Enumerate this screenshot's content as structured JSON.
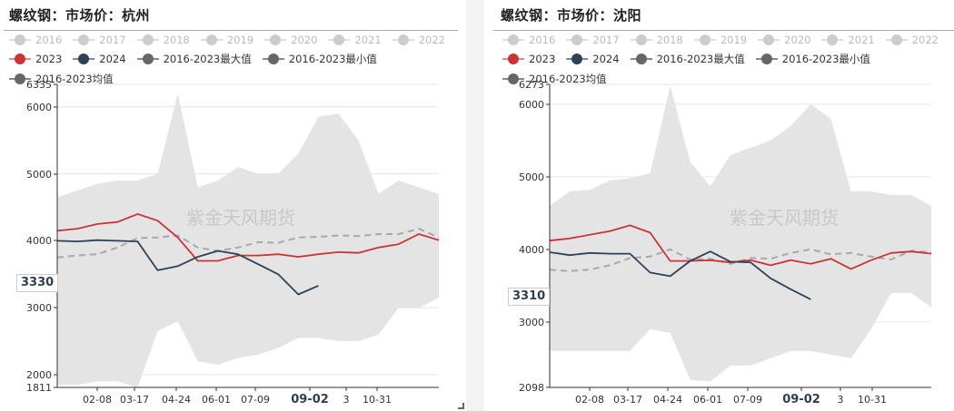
{
  "colors": {
    "y2023": "#c93434",
    "y2024": "#2e4257",
    "max_min": "#666666",
    "mean": "#999999",
    "band": "#e4e4e4",
    "inactive": "#cccccc"
  },
  "legend": {
    "inactive_years": [
      "2016",
      "2017",
      "2018",
      "2019",
      "2020",
      "2021",
      "2022"
    ],
    "active": [
      {
        "label": "2023"
      },
      {
        "label": "2024"
      },
      {
        "label": "2016-2023最大值"
      },
      {
        "label": "2016-2023最小值"
      }
    ],
    "mean": {
      "label": "2016-2023均值"
    }
  },
  "watermark": "紫金天风期货",
  "charts": [
    {
      "title": "螺纹钢：市场价：杭州",
      "y_axis": {
        "ticks": [
          "6335",
          "6000",
          "5000",
          "4000",
          "3000",
          "2000",
          "1811"
        ]
      },
      "x_axis": {
        "ticks": [
          "02-08",
          "03-17",
          "04-24",
          "06-01",
          "07-09",
          "09-02",
          "3",
          "10-31"
        ],
        "highlight": "09-02"
      },
      "current_badge": "3330"
    },
    {
      "title": "螺纹钢：市场价：沈阳",
      "y_axis": {
        "ticks": [
          "6273",
          "6000",
          "5000",
          "4000",
          "3000",
          "2098"
        ]
      },
      "x_axis": {
        "ticks": [
          "02-08",
          "03-17",
          "04-24",
          "06-01",
          "07-09",
          "09-02",
          "3",
          "10-31"
        ],
        "highlight": "09-02"
      },
      "current_badge": "3310"
    }
  ],
  "chart_data": [
    {
      "type": "line",
      "title": "螺纹钢：市场价：杭州",
      "xlabel": "",
      "ylabel": "",
      "ylim": [
        1811,
        6335
      ],
      "x_ticks": [
        "02-08",
        "03-17",
        "04-24",
        "06-01",
        "07-09",
        "09-02",
        "10-31"
      ],
      "legend": [
        "2016",
        "2017",
        "2018",
        "2019",
        "2020",
        "2021",
        "2022",
        "2023",
        "2024",
        "2016-2023最大值",
        "2016-2023最小值",
        "2016-2023均值"
      ],
      "legend_position": "top",
      "grid": true,
      "x": [
        "01-01",
        "01-20",
        "02-08",
        "02-27",
        "03-17",
        "04-05",
        "04-24",
        "05-13",
        "06-01",
        "06-20",
        "07-09",
        "07-28",
        "08-16",
        "09-02",
        "09-20",
        "10-10",
        "10-31",
        "11-20",
        "12-10",
        "12-31"
      ],
      "series": [
        {
          "name": "2023",
          "values": [
            4150,
            4180,
            4250,
            4280,
            4400,
            4300,
            4050,
            3700,
            3700,
            3780,
            3780,
            3800,
            3760,
            3800,
            3830,
            3820,
            3900,
            3950,
            4100,
            4010
          ]
        },
        {
          "name": "2024",
          "values": [
            4000,
            3990,
            4010,
            4000,
            3990,
            3560,
            3620,
            3760,
            3850,
            3800,
            3650,
            3500,
            3200,
            3330,
            null,
            null,
            null,
            null,
            null,
            null
          ]
        },
        {
          "name": "2016-2023最大值",
          "values": [
            4650,
            4750,
            4850,
            4900,
            4900,
            5000,
            6200,
            4800,
            4900,
            5100,
            5000,
            5000,
            5300,
            5850,
            5900,
            5500,
            4700,
            4900,
            4800,
            4700
          ]
        },
        {
          "name": "2016-2023最小值",
          "values": [
            1850,
            1850,
            1900,
            1900,
            1811,
            2650,
            2800,
            2200,
            2150,
            2250,
            2300,
            2400,
            2550,
            2550,
            2500,
            2500,
            2600,
            3000,
            3000,
            3150
          ]
        },
        {
          "name": "2016-2023均值",
          "values": [
            3750,
            3780,
            3800,
            3900,
            4040,
            4050,
            4080,
            3900,
            3850,
            3900,
            3980,
            3970,
            4050,
            4060,
            4080,
            4070,
            4100,
            4100,
            4180,
            4050
          ]
        }
      ]
    },
    {
      "type": "line",
      "title": "螺纹钢：市场价：沈阳",
      "xlabel": "",
      "ylabel": "",
      "ylim": [
        2098,
        6273
      ],
      "x_ticks": [
        "02-08",
        "03-17",
        "04-24",
        "06-01",
        "07-09",
        "09-02",
        "10-31"
      ],
      "legend": [
        "2016",
        "2017",
        "2018",
        "2019",
        "2020",
        "2021",
        "2022",
        "2023",
        "2024",
        "2016-2023最大值",
        "2016-2023最小值",
        "2016-2023均值"
      ],
      "legend_position": "top",
      "grid": true,
      "x": [
        "01-01",
        "01-20",
        "02-08",
        "02-27",
        "03-17",
        "04-05",
        "04-24",
        "05-13",
        "06-01",
        "06-20",
        "07-09",
        "07-28",
        "08-16",
        "09-02",
        "09-20",
        "10-10",
        "10-31",
        "11-20",
        "12-10",
        "12-31"
      ],
      "series": [
        {
          "name": "2023",
          "values": [
            4120,
            4150,
            4200,
            4250,
            4330,
            4230,
            3840,
            3840,
            3850,
            3820,
            3850,
            3780,
            3850,
            3800,
            3870,
            3730,
            3850,
            3950,
            3970,
            3940
          ]
        },
        {
          "name": "2024",
          "values": [
            3960,
            3920,
            3950,
            3940,
            3940,
            3680,
            3630,
            3840,
            3970,
            3830,
            3820,
            3600,
            3450,
            3310,
            null,
            null,
            null,
            null,
            null,
            null
          ]
        },
        {
          "name": "2016-2023最大值",
          "values": [
            4600,
            4800,
            4820,
            4950,
            4980,
            5050,
            6250,
            5200,
            4870,
            5300,
            5400,
            5500,
            5700,
            6000,
            5800,
            4800,
            4800,
            4750,
            4750,
            4600
          ]
        },
        {
          "name": "2016-2023最小值",
          "values": [
            2600,
            2600,
            2600,
            2600,
            2600,
            2900,
            2850,
            2200,
            2180,
            2400,
            2400,
            2500,
            2600,
            2600,
            2550,
            2500,
            2900,
            3400,
            3400,
            3200
          ]
        },
        {
          "name": "2016-2023均值",
          "values": [
            3720,
            3700,
            3720,
            3780,
            3880,
            3900,
            4000,
            3860,
            3870,
            3800,
            3880,
            3870,
            3950,
            4000,
            3930,
            3950,
            3900,
            3860,
            3980,
            3960
          ]
        }
      ]
    }
  ]
}
